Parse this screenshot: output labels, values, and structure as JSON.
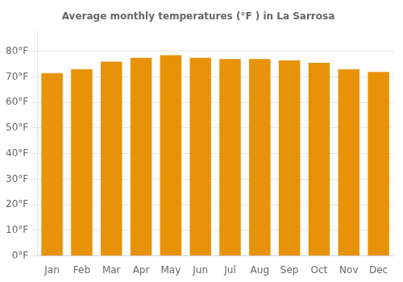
{
  "chart_data": {
    "type": "bar",
    "title": "Average monthly temperatures (°F ) in La Sarrosa",
    "categories": [
      "Jan",
      "Feb",
      "Mar",
      "Apr",
      "May",
      "Jun",
      "Jul",
      "Aug",
      "Sep",
      "Oct",
      "Nov",
      "Dec"
    ],
    "values": [
      71.5,
      73.0,
      76.0,
      77.5,
      78.5,
      77.5,
      77.0,
      77.0,
      76.5,
      75.5,
      73.0,
      72.0
    ],
    "color": "#E8920A",
    "ylim": [
      0,
      88
    ],
    "yticks": [
      {
        "value": 0,
        "label": "0°F"
      },
      {
        "value": 10,
        "label": "10°F"
      },
      {
        "value": 20,
        "label": "20°F"
      },
      {
        "value": 30,
        "label": "30°F"
      },
      {
        "value": 40,
        "label": "40°F"
      },
      {
        "value": 50,
        "label": "50°F"
      },
      {
        "value": 60,
        "label": "60°F"
      },
      {
        "value": 70,
        "label": "70°F"
      },
      {
        "value": 80,
        "label": "80°F"
      }
    ],
    "grid": true
  }
}
